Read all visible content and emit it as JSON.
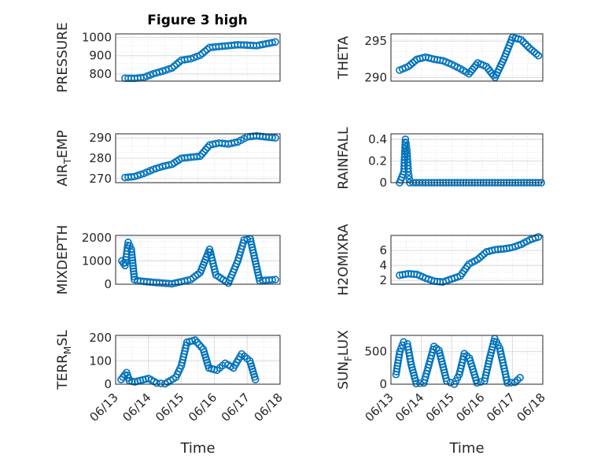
{
  "figure": {
    "title": "Figure 3 high"
  },
  "colors": {
    "marker": "#0072bd",
    "axis": "#262626"
  },
  "chart_data": [
    {
      "type": "scatter",
      "id": "pressure",
      "ylabel": "PRESSURE",
      "ylim": [
        760,
        1020
      ],
      "yticks": [
        800,
        900,
        1000
      ],
      "xlim": [
        "06/13",
        "06/17"
      ],
      "xticks": [],
      "x": [
        "06/13 06:00",
        "06/13 12:00",
        "06/13 18:00",
        "06/14 00:00",
        "06/14 06:00",
        "06/14 12:00",
        "06/14 18:00",
        "06/15 00:00",
        "06/15 06:00",
        "06/15 12:00",
        "06/15 18:00",
        "06/16 00:00",
        "06/16 06:00",
        "06/16 12:00",
        "06/16 18:00",
        "06/17 00:00",
        "06/17 06:00"
      ],
      "y": [
        776,
        775,
        780,
        800,
        815,
        832,
        875,
        883,
        902,
        945,
        950,
        955,
        960,
        958,
        955,
        965,
        975
      ]
    },
    {
      "type": "scatter",
      "id": "theta",
      "ylabel": "THETA",
      "ylim": [
        289.5,
        296
      ],
      "yticks": [
        290,
        295
      ],
      "xlim": [
        "06/13",
        "06/17"
      ],
      "xticks": [],
      "x": [
        "06/13 06:00",
        "06/13 12:00",
        "06/13 18:00",
        "06/14 00:00",
        "06/14 06:00",
        "06/14 12:00",
        "06/14 18:00",
        "06/15 00:00",
        "06/15 06:00",
        "06/15 12:00",
        "06/15 18:00",
        "06/16 00:00",
        "06/16 06:00",
        "06/16 12:00",
        "06/16 18:00",
        "06/17 00:00",
        "06/17 06:00"
      ],
      "y": [
        291.0,
        291.5,
        292.5,
        292.8,
        292.5,
        292.3,
        291.8,
        291.2,
        290.5,
        292.0,
        291.5,
        290.0,
        292.5,
        295.5,
        295.2,
        294.0,
        293.0
      ]
    },
    {
      "type": "scatter",
      "id": "air_temp",
      "ylabel": "AIR",
      "ylabel_sub": "T",
      "ylabel_rest": "EMP",
      "ylim": [
        268,
        292
      ],
      "yticks": [
        270,
        280,
        290
      ],
      "xlim": [
        "06/13",
        "06/17"
      ],
      "xticks": [],
      "x": [
        "06/13 06:00",
        "06/13 12:00",
        "06/13 18:00",
        "06/14 00:00",
        "06/14 06:00",
        "06/14 12:00",
        "06/14 18:00",
        "06/15 00:00",
        "06/15 06:00",
        "06/15 12:00",
        "06/15 18:00",
        "06/16 00:00",
        "06/16 06:00",
        "06/16 12:00",
        "06/16 18:00",
        "06/17 00:00",
        "06/17 06:00"
      ],
      "y": [
        270.5,
        271.0,
        272.5,
        274.5,
        276.0,
        277.0,
        280.0,
        280.5,
        281.0,
        286.5,
        287.5,
        287.0,
        288.0,
        290.5,
        291.0,
        290.5,
        290.0
      ]
    },
    {
      "type": "scatter",
      "id": "rainfall",
      "ylabel": "RAINFALL",
      "ylim": [
        0,
        0.45
      ],
      "yticks": [
        0,
        0.2,
        0.4
      ],
      "xlim": [
        "06/13",
        "06/17"
      ],
      "xticks": [],
      "x": [
        "06/13 06:00",
        "06/13 09:00",
        "06/13 10:00",
        "06/13 11:00",
        "06/13 12:00",
        "06/13 13:00",
        "06/14 00:00",
        "06/15 00:00",
        "06/16 00:00",
        "06/17 00:00",
        "06/17 08:00"
      ],
      "y": [
        0,
        0.1,
        0.4,
        0.3,
        0.1,
        0,
        0,
        0,
        0,
        0,
        0
      ]
    },
    {
      "type": "scatter",
      "id": "mixdepth",
      "ylabel": "MIXDEPTH",
      "ylim": [
        0,
        2100
      ],
      "yticks": [
        0,
        1000,
        2000
      ],
      "xlim": [
        "06/13",
        "06/17"
      ],
      "xticks": [],
      "x": [
        "06/13 04:00",
        "06/13 06:00",
        "06/13 08:00",
        "06/13 10:00",
        "06/13 12:00",
        "06/13 14:00",
        "06/14 00:00",
        "06/14 12:00",
        "06/15 00:00",
        "06/15 06:00",
        "06/15 12:00",
        "06/15 16:00",
        "06/16 00:00",
        "06/16 06:00",
        "06/16 10:00",
        "06/16 14:00",
        "06/16 20:00",
        "06/17 06:00"
      ],
      "y": [
        1000,
        800,
        1800,
        1500,
        200,
        150,
        80,
        20,
        200,
        500,
        1500,
        400,
        50,
        1000,
        1900,
        1950,
        150,
        200
      ]
    },
    {
      "type": "scatter",
      "id": "h2omixra",
      "ylabel": "H2OMIXRA",
      "ylim": [
        1.5,
        8
      ],
      "yticks": [
        2,
        4,
        6
      ],
      "xlim": [
        "06/13",
        "06/17"
      ],
      "xticks": [],
      "x": [
        "06/13 06:00",
        "06/13 12:00",
        "06/13 18:00",
        "06/14 00:00",
        "06/14 06:00",
        "06/14 12:00",
        "06/14 18:00",
        "06/15 00:00",
        "06/15 06:00",
        "06/15 12:00",
        "06/15 18:00",
        "06/16 00:00",
        "06/16 06:00",
        "06/16 12:00",
        "06/16 18:00",
        "06/17 00:00",
        "06/17 06:00"
      ],
      "y": [
        2.7,
        2.9,
        2.8,
        2.3,
        1.9,
        1.8,
        2.2,
        2.6,
        4.2,
        4.8,
        5.8,
        6.1,
        6.2,
        6.4,
        6.8,
        7.4,
        7.8
      ]
    },
    {
      "type": "scatter",
      "id": "terr_msl",
      "ylabel": "TERR",
      "ylabel_sub": "M",
      "ylabel_rest": "SL",
      "ylim": [
        0,
        210
      ],
      "yticks": [
        0,
        100,
        200
      ],
      "xlim": [
        "06/13",
        "06/18"
      ],
      "xticks": [
        "06/13",
        "06/14",
        "06/15",
        "06/16",
        "06/17",
        "06/18"
      ],
      "xlabel": "Time",
      "x": [
        "06/13 04:00",
        "06/13 08:00",
        "06/13 10:00",
        "06/13 14:00",
        "06/14 00:00",
        "06/14 06:00",
        "06/14 12:00",
        "06/14 20:00",
        "06/15 00:00",
        "06/15 04:00",
        "06/15 10:00",
        "06/15 16:00",
        "06/15 20:00",
        "06/16 02:00",
        "06/16 08:00",
        "06/16 14:00",
        "06/16 20:00",
        "06/17 02:00",
        "06/17 06:00"
      ],
      "y": [
        20,
        50,
        15,
        10,
        25,
        5,
        2,
        30,
        80,
        180,
        190,
        150,
        70,
        60,
        90,
        70,
        130,
        100,
        20
      ]
    },
    {
      "type": "scatter",
      "id": "sun_flux",
      "ylabel": "SUN",
      "ylabel_sub": "F",
      "ylabel_rest": "LUX",
      "ylim": [
        0,
        750
      ],
      "yticks": [
        0,
        500
      ],
      "xlim": [
        "06/13",
        "06/18"
      ],
      "xticks": [
        "06/13",
        "06/14",
        "06/15",
        "06/16",
        "06/17",
        "06/18"
      ],
      "xlabel": "Time",
      "x": [
        "06/13 04:00",
        "06/13 07:00",
        "06/13 10:00",
        "06/13 13:00",
        "06/13 16:00",
        "06/13 20:00",
        "06/14 02:00",
        "06/14 06:00",
        "06/14 10:00",
        "06/14 14:00",
        "06/14 20:00",
        "06/15 02:00",
        "06/15 06:00",
        "06/15 10:00",
        "06/15 14:00",
        "06/15 20:00",
        "06/16 02:00",
        "06/16 06:00",
        "06/16 10:00",
        "06/16 14:00",
        "06/16 20:00",
        "06/17 02:00",
        "06/17 06:00"
      ],
      "y": [
        150,
        500,
        650,
        620,
        300,
        10,
        20,
        300,
        580,
        520,
        50,
        0,
        150,
        470,
        400,
        20,
        50,
        400,
        700,
        550,
        20,
        30,
        100
      ]
    }
  ]
}
